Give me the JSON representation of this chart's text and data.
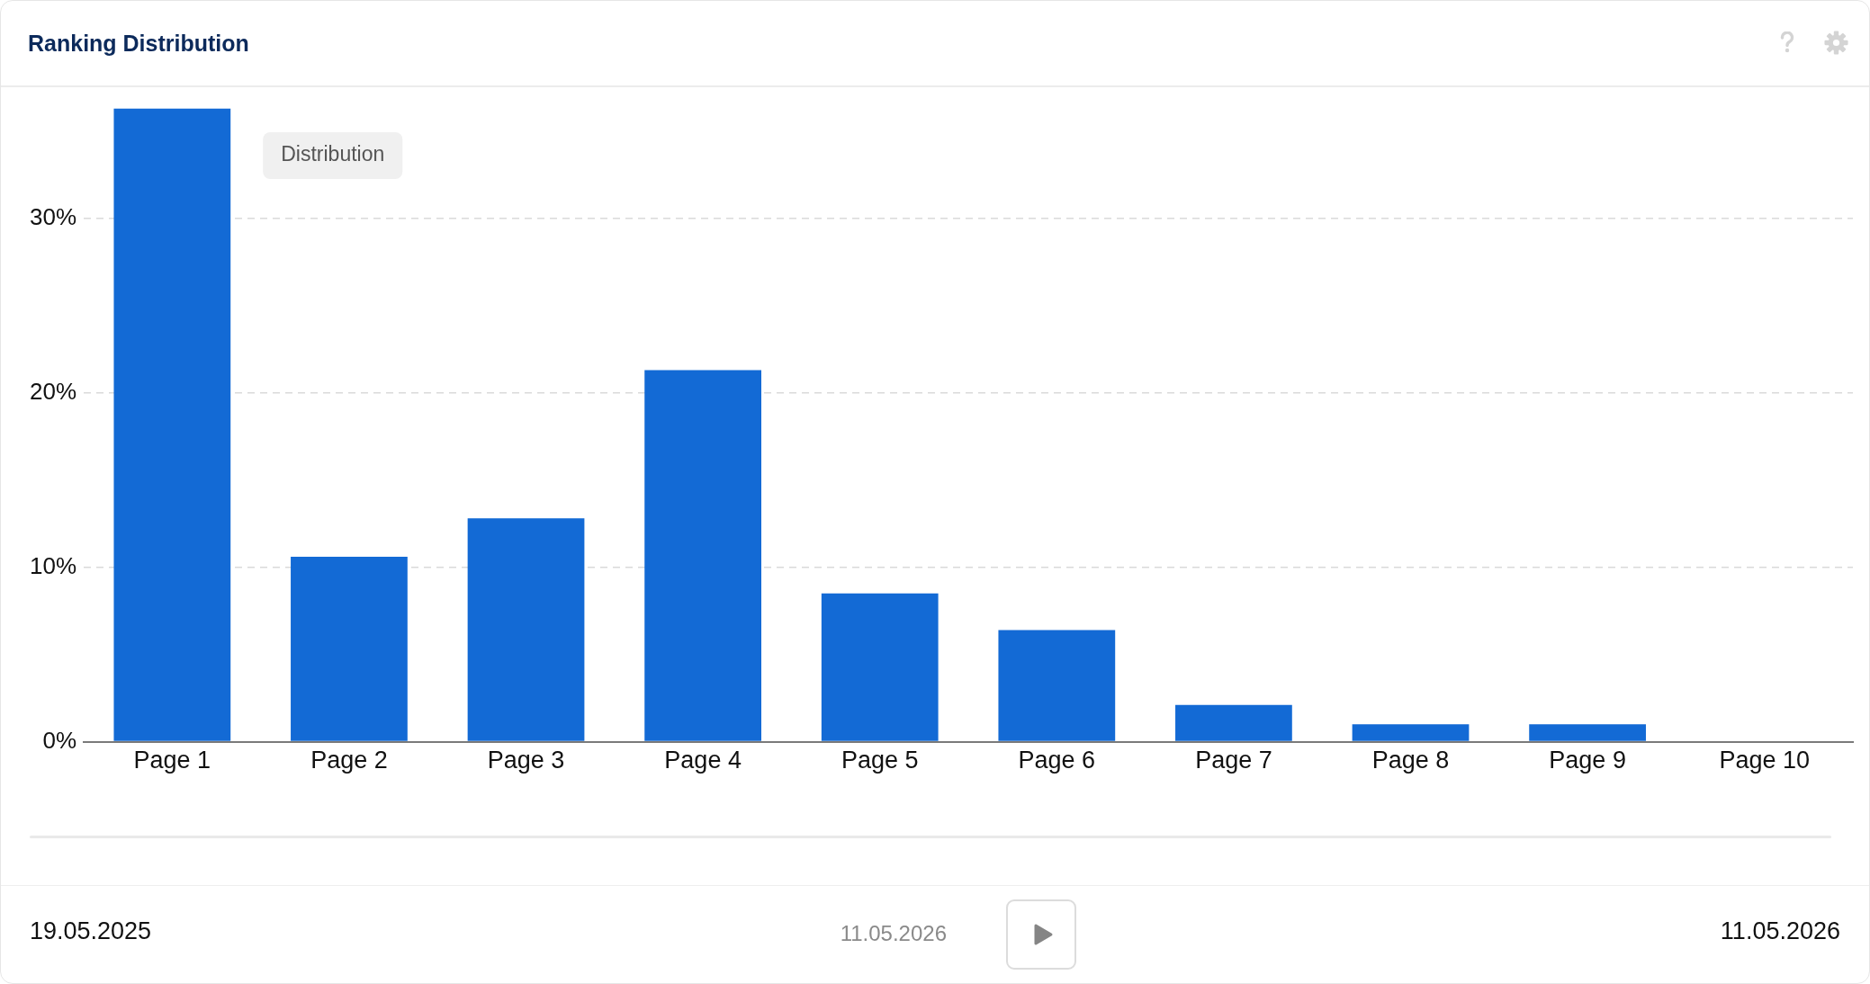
{
  "chart_data": {
    "type": "bar",
    "title": "Ranking Distribution",
    "categories": [
      "Page 1",
      "Page 2",
      "Page 3",
      "Page 4",
      "Page 5",
      "Page 6",
      "Page 7",
      "Page 8",
      "Page 9",
      "Page 10"
    ],
    "values": [
      36.3,
      10.6,
      12.8,
      21.3,
      8.5,
      6.4,
      2.1,
      1.0,
      1.0,
      0
    ],
    "color": "#136ad5",
    "ylim": [
      0,
      36.3
    ],
    "yticks": [
      {
        "value": 0,
        "label": "0%"
      },
      {
        "value": 10,
        "label": "10%"
      },
      {
        "value": 20,
        "label": "20%"
      },
      {
        "value": 30,
        "label": "30%"
      }
    ],
    "grid": "y",
    "annotations": [
      "Distribution",
      "19.05.2025",
      "11.05.2026",
      "11.05.2026"
    ]
  }
}
